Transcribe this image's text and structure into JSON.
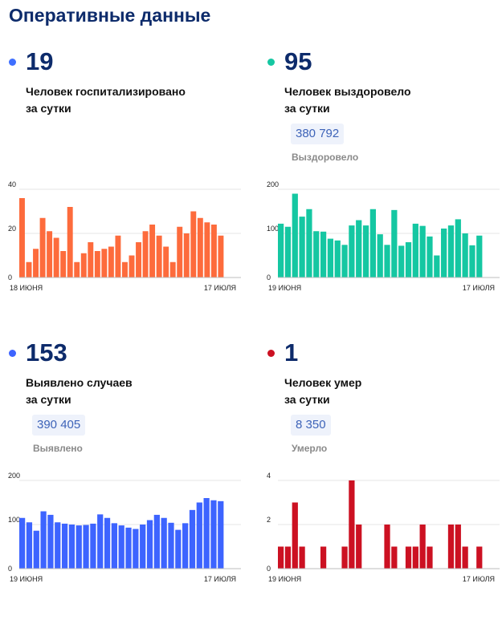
{
  "page": {
    "title": "Оперативные данные"
  },
  "cards": [
    {
      "id": "hospitalized",
      "value": "19",
      "label_line1": "Человек госпитализировано",
      "label_line2": "за сутки",
      "total": "",
      "total_caption": "",
      "color": "#fd6b3c",
      "dot_color": "#3f6fff"
    },
    {
      "id": "recovered",
      "value": "95",
      "label_line1": "Человек выздоровело",
      "label_line2": "за сутки",
      "total": "380 792",
      "total_caption": "Выздоровело",
      "color": "#15c7a2",
      "dot_color": "#15c7a2"
    },
    {
      "id": "detected",
      "value": "153",
      "label_line1": "Выявлено случаев",
      "label_line2": "за сутки",
      "total": "390 405",
      "total_caption": "Выявлено",
      "color": "#3d64ff",
      "dot_color": "#3d64ff"
    },
    {
      "id": "died",
      "value": "1",
      "label_line1": "Человек умер",
      "label_line2": "за сутки",
      "total": "8 350",
      "total_caption": "Умерло",
      "color": "#cc1122",
      "dot_color": "#cc1122"
    }
  ],
  "chart_data": [
    {
      "type": "bar",
      "series_color": "#fd6b3c",
      "x_start_label": "18 июня",
      "x_end_label": "17 июля",
      "yticks": [
        0,
        20,
        40
      ],
      "ylim": [
        0,
        40
      ],
      "values": [
        36,
        7,
        13,
        27,
        21,
        18,
        12,
        32,
        7,
        11,
        16,
        12,
        13,
        14,
        19,
        7,
        10,
        16,
        21,
        24,
        19,
        14,
        7,
        23,
        20,
        30,
        27,
        25,
        24,
        19
      ]
    },
    {
      "type": "bar",
      "series_color": "#15c7a2",
      "x_start_label": "19 июня",
      "x_end_label": "17 июля",
      "yticks": [
        0,
        100,
        200
      ],
      "ylim": [
        0,
        200
      ],
      "values": [
        122,
        115,
        190,
        138,
        155,
        105,
        104,
        88,
        84,
        74,
        118,
        130,
        118,
        155,
        98,
        74,
        153,
        72,
        80,
        122,
        117,
        93,
        50,
        111,
        118,
        132,
        100,
        73,
        95
      ]
    },
    {
      "type": "bar",
      "series_color": "#3d64ff",
      "x_start_label": "19 июня",
      "x_end_label": "17 июля",
      "yticks": [
        0,
        100,
        200
      ],
      "ylim": [
        0,
        200
      ],
      "values": [
        115,
        105,
        86,
        130,
        122,
        105,
        102,
        100,
        98,
        99,
        102,
        123,
        115,
        103,
        98,
        93,
        90,
        100,
        110,
        122,
        115,
        104,
        88,
        103,
        133,
        150,
        160,
        155,
        153
      ]
    },
    {
      "type": "bar",
      "series_color": "#cc1122",
      "x_start_label": "19 июня",
      "x_end_label": "17 июля",
      "yticks": [
        0,
        2,
        4
      ],
      "ylim": [
        0,
        4
      ],
      "values": [
        1,
        1,
        3,
        1,
        0,
        0,
        1,
        0,
        0,
        1,
        4,
        2,
        0,
        0,
        0,
        2,
        1,
        0,
        1,
        1,
        2,
        1,
        0,
        0,
        2,
        2,
        1,
        0,
        1
      ]
    }
  ]
}
